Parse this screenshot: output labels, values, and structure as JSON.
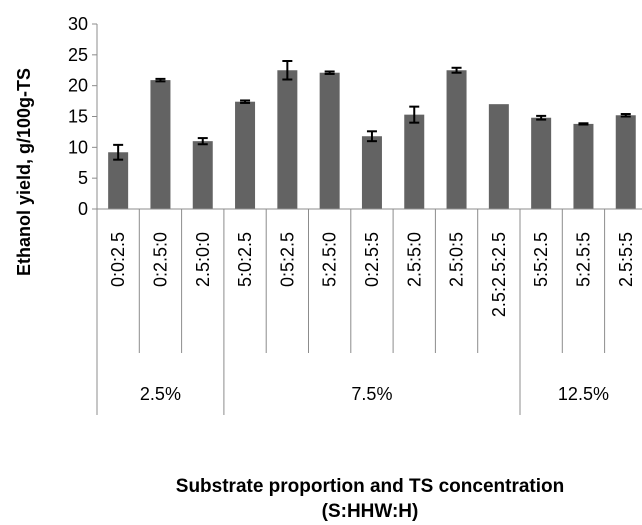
{
  "chart_data": {
    "type": "bar",
    "categories": [
      "0:0:2.5",
      "0:2.5:0",
      "2.5:0:0",
      "5:0:2.5",
      "0:5:2.5",
      "5:2.5:0",
      "0:2.5:5",
      "2.5:5:0",
      "2.5:0:5",
      "2.5:2.5:2.5",
      "5:5:2.5",
      "5:2.5:5",
      "2.5:5:5"
    ],
    "groups": [
      {
        "label": "2.5%",
        "count": 3
      },
      {
        "label": "7.5%",
        "count": 7
      },
      {
        "label": "12.5%",
        "count": 3
      }
    ],
    "values": [
      9.2,
      20.9,
      11.0,
      17.4,
      22.5,
      22.1,
      11.8,
      15.3,
      22.5,
      17.0,
      14.8,
      13.8,
      15.2
    ],
    "errors": [
      1.2,
      0.2,
      0.5,
      0.2,
      1.5,
      0.2,
      0.8,
      1.3,
      0.4,
      0,
      0.3,
      0.1,
      0.2
    ],
    "ylabel": "Ethanol yield, g/100g-TS",
    "xlabel": "Substrate proportion and TS concentration",
    "xlabel_line2": "(S:HHW:H)",
    "ylim": [
      0,
      30
    ],
    "yticks": [
      0,
      5,
      10,
      15,
      20,
      25,
      30
    ],
    "bar_color": "#636363",
    "grid": false,
    "legend": "none"
  }
}
